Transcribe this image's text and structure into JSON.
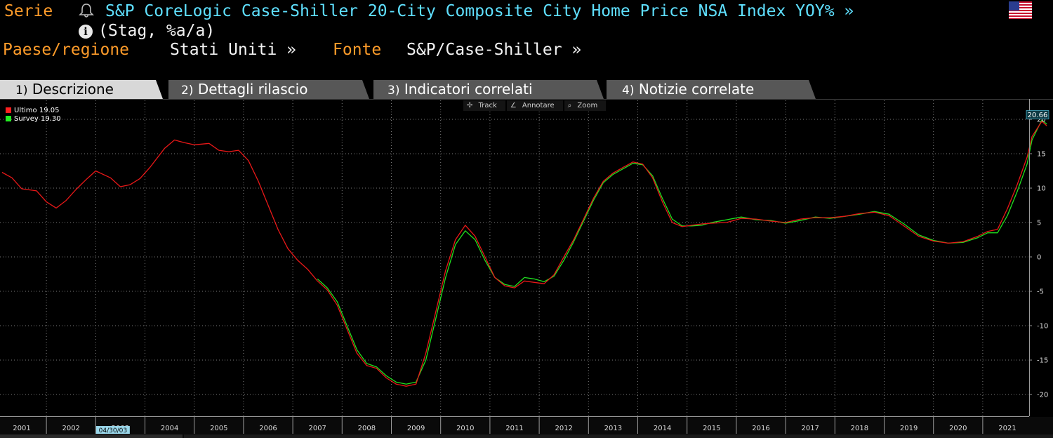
{
  "header": {
    "serie_label": "Serie",
    "title": "S&P CoreLogic Case-Shiller 20-City Composite City Home Price NSA Index YOY% »",
    "subtitle": "(Stag, %a/a)",
    "paese_label": "Paese/regione",
    "paese_value": "Stati Uniti »",
    "fonte_label": "Fonte",
    "fonte_value": "S&P/Case-Shiller »",
    "bell_icon": "bell-icon",
    "info_icon": "info-icon",
    "flag_icon": "us-flag-icon"
  },
  "tabs": [
    {
      "num": "1)",
      "label": "Descrizione",
      "active": true
    },
    {
      "num": "2)",
      "label": "Dettagli rilascio",
      "active": false
    },
    {
      "num": "3)",
      "label": "Indicatori correlati",
      "active": false
    },
    {
      "num": "4)",
      "label": "Notizie correlate",
      "active": false
    }
  ],
  "toolbar": {
    "track": "Track",
    "annotate": "Annotare",
    "zoom": "Zoom"
  },
  "legend": [
    {
      "name": "Ultimo",
      "value": "19.05",
      "color": "#ff2020"
    },
    {
      "name": "Survey",
      "value": "19.30",
      "color": "#22ee22"
    }
  ],
  "colors": {
    "orange": "#ff9c2a",
    "cyan": "#5fe0ff",
    "ultimo": "#e81818",
    "survey": "#1fe01f",
    "tab_active": "#d9d9d9",
    "tab_inactive": "#555555"
  },
  "chart_data": {
    "type": "line",
    "last_value_label": "20.66",
    "cursor_date": "04/30/03",
    "x_ticks": [
      "2001",
      "2002",
      "2003",
      "2004",
      "2005",
      "2006",
      "2007",
      "2008",
      "2009",
      "2010",
      "2011",
      "2012",
      "2013",
      "2014",
      "2015",
      "2016",
      "2017",
      "2018",
      "2019",
      "2020",
      "2021"
    ],
    "y_ticks": [
      "20",
      "15",
      "10",
      "5",
      "0",
      "-5",
      "-10",
      "-15",
      "-20"
    ],
    "ylim": [
      -22,
      21
    ],
    "xlim": [
      2000.6,
      2021.9
    ],
    "grid": true,
    "legend_position": "top-left",
    "series": [
      {
        "name": "Ultimo",
        "color": "#e81818",
        "x": [
          2000.6,
          2000.8,
          2001.0,
          2001.3,
          2001.5,
          2001.7,
          2001.9,
          2002.1,
          2002.3,
          2002.5,
          2002.8,
          2003.0,
          2003.2,
          2003.4,
          2003.6,
          2003.9,
          2004.1,
          2004.3,
          2004.5,
          2004.8,
          2005.0,
          2005.2,
          2005.4,
          2005.6,
          2005.8,
          2006.0,
          2006.2,
          2006.4,
          2006.6,
          2006.8,
          2007.0,
          2007.2,
          2007.4,
          2007.6,
          2007.8,
          2008.0,
          2008.2,
          2008.4,
          2008.6,
          2008.8,
          2009.0,
          2009.2,
          2009.4,
          2009.6,
          2009.8,
          2010.0,
          2010.2,
          2010.4,
          2010.6,
          2010.8,
          2011.0,
          2011.2,
          2011.4,
          2011.6,
          2011.8,
          2012.0,
          2012.2,
          2012.4,
          2012.6,
          2012.8,
          2013.0,
          2013.2,
          2013.4,
          2013.6,
          2013.8,
          2014.0,
          2014.2,
          2014.4,
          2014.6,
          2014.8,
          2015.0,
          2015.3,
          2015.6,
          2015.9,
          2016.2,
          2016.5,
          2016.8,
          2017.1,
          2017.4,
          2017.7,
          2018.0,
          2018.3,
          2018.6,
          2018.9,
          2019.2,
          2019.5,
          2019.8,
          2020.1,
          2020.4,
          2020.6,
          2020.8,
          2021.0,
          2021.2,
          2021.4,
          2021.5,
          2021.7,
          2021.8
        ],
        "values": [
          12.3,
          11.5,
          9.9,
          9.6,
          8.0,
          7.1,
          8.2,
          9.8,
          11.2,
          12.5,
          11.5,
          10.2,
          10.5,
          11.4,
          13.0,
          15.8,
          17.0,
          16.6,
          16.3,
          16.5,
          15.5,
          15.3,
          15.5,
          14.0,
          11.0,
          7.5,
          4.0,
          1.2,
          -0.5,
          -1.8,
          -3.5,
          -4.8,
          -7.0,
          -10.5,
          -14.0,
          -15.8,
          -16.2,
          -17.6,
          -18.5,
          -18.8,
          -18.5,
          -14.0,
          -8.0,
          -2.0,
          2.5,
          4.6,
          3.0,
          0.0,
          -3.0,
          -4.2,
          -4.5,
          -3.5,
          -3.7,
          -3.9,
          -2.6,
          0.0,
          2.5,
          5.5,
          8.5,
          11.0,
          12.2,
          13.0,
          13.8,
          13.5,
          11.5,
          8.0,
          5.0,
          4.4,
          4.6,
          4.8,
          4.9,
          5.0,
          5.6,
          5.5,
          5.2,
          5.0,
          5.5,
          5.7,
          5.7,
          5.9,
          6.3,
          6.5,
          6.0,
          4.5,
          3.0,
          2.3,
          2.0,
          2.2,
          3.0,
          3.7,
          4.0,
          7.0,
          10.5,
          14.5,
          17.5,
          19.7,
          19.05
        ]
      },
      {
        "name": "Survey",
        "color": "#1fe01f",
        "x": [
          2007.0,
          2007.2,
          2007.4,
          2007.6,
          2007.8,
          2008.0,
          2008.2,
          2008.4,
          2008.6,
          2008.8,
          2009.0,
          2009.2,
          2009.4,
          2009.6,
          2009.8,
          2010.0,
          2010.2,
          2010.4,
          2010.6,
          2010.8,
          2011.0,
          2011.2,
          2011.4,
          2011.6,
          2011.8,
          2012.0,
          2012.2,
          2012.4,
          2012.6,
          2012.8,
          2013.0,
          2013.2,
          2013.4,
          2013.6,
          2013.8,
          2014.0,
          2014.2,
          2014.4,
          2014.6,
          2014.8,
          2015.0,
          2015.3,
          2015.6,
          2015.9,
          2016.2,
          2016.5,
          2016.8,
          2017.1,
          2017.4,
          2017.7,
          2018.0,
          2018.3,
          2018.6,
          2018.9,
          2019.2,
          2019.5,
          2019.8,
          2020.1,
          2020.4,
          2020.6,
          2020.8,
          2021.0,
          2021.2,
          2021.4,
          2021.5,
          2021.7,
          2021.8
        ],
        "values": [
          -3.2,
          -4.5,
          -6.5,
          -10.0,
          -13.5,
          -15.5,
          -16.0,
          -17.3,
          -18.2,
          -18.5,
          -18.2,
          -15.0,
          -9.0,
          -3.0,
          1.8,
          3.8,
          2.5,
          -0.5,
          -3.0,
          -4.0,
          -4.3,
          -3.0,
          -3.2,
          -3.6,
          -2.8,
          -0.5,
          2.2,
          5.2,
          8.2,
          10.8,
          12.0,
          12.8,
          13.6,
          13.4,
          11.8,
          8.5,
          5.5,
          4.5,
          4.5,
          4.6,
          5.0,
          5.4,
          5.8,
          5.4,
          5.3,
          4.9,
          5.3,
          5.8,
          5.6,
          5.9,
          6.2,
          6.6,
          6.2,
          4.8,
          3.2,
          2.4,
          2.0,
          2.1,
          2.8,
          3.5,
          3.5,
          6.0,
          9.5,
          13.5,
          17.0,
          19.9,
          19.3
        ]
      }
    ]
  }
}
